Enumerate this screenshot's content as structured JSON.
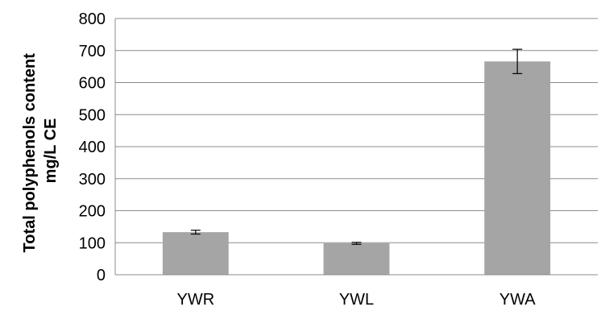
{
  "chart_data": {
    "type": "bar",
    "title": "",
    "xlabel": "",
    "ylabel_lines": [
      "Total polyphenols content",
      "mg/L CE"
    ],
    "categories": [
      "YWR",
      "YWL",
      "YWA"
    ],
    "values": [
      133,
      98,
      666
    ],
    "error": [
      6,
      3,
      38
    ],
    "ylim": [
      0,
      800
    ],
    "yticks": [
      0,
      100,
      200,
      300,
      400,
      500,
      600,
      700,
      800
    ],
    "grid": true,
    "legend": "none",
    "colors": {
      "bar": "#a5a5a5",
      "grid": "#8c8c8c",
      "error_bar": "#000000"
    }
  }
}
